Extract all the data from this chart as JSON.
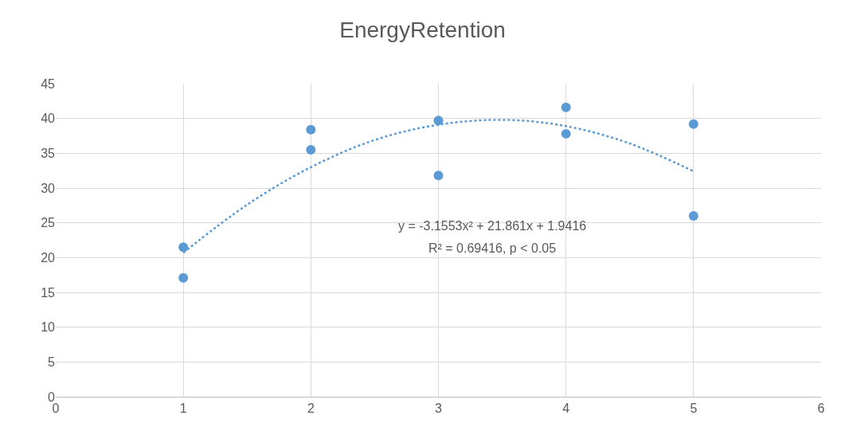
{
  "chart_data": {
    "type": "scatter",
    "title": "EnergyRetention",
    "series": [
      {
        "color": "#5b9bd5",
        "marker": "circle",
        "x": [
          1,
          1,
          2,
          2,
          3,
          3,
          4,
          4,
          5,
          5
        ],
        "values": [
          21.5,
          17.1,
          38.4,
          35.5,
          39.7,
          31.8,
          41.6,
          37.8,
          39.2,
          26.0
        ]
      },
      {
        "type": "line",
        "color": "#5b9bd5",
        "line_style": "dotted",
        "marker": "none",
        "x": [
          1,
          1.5,
          2,
          2.5,
          3,
          3.5,
          4,
          4.5,
          5
        ],
        "values": [
          20.7,
          27.6,
          33.0,
          36.9,
          39.1,
          39.8,
          38.9,
          36.4,
          32.4
        ]
      }
    ],
    "annotations": [
      "y = -3.1553x² + 21.861x + 1.9416",
      "R² = 0.69416, p < 0.05"
    ],
    "xlim": [
      0,
      6
    ],
    "xticks": [
      0,
      1,
      2,
      3,
      4,
      5,
      6
    ],
    "ylim": [
      0,
      45
    ],
    "yticks": [
      0,
      5,
      10,
      15,
      20,
      25,
      30,
      35,
      40,
      45
    ],
    "grid": true
  }
}
